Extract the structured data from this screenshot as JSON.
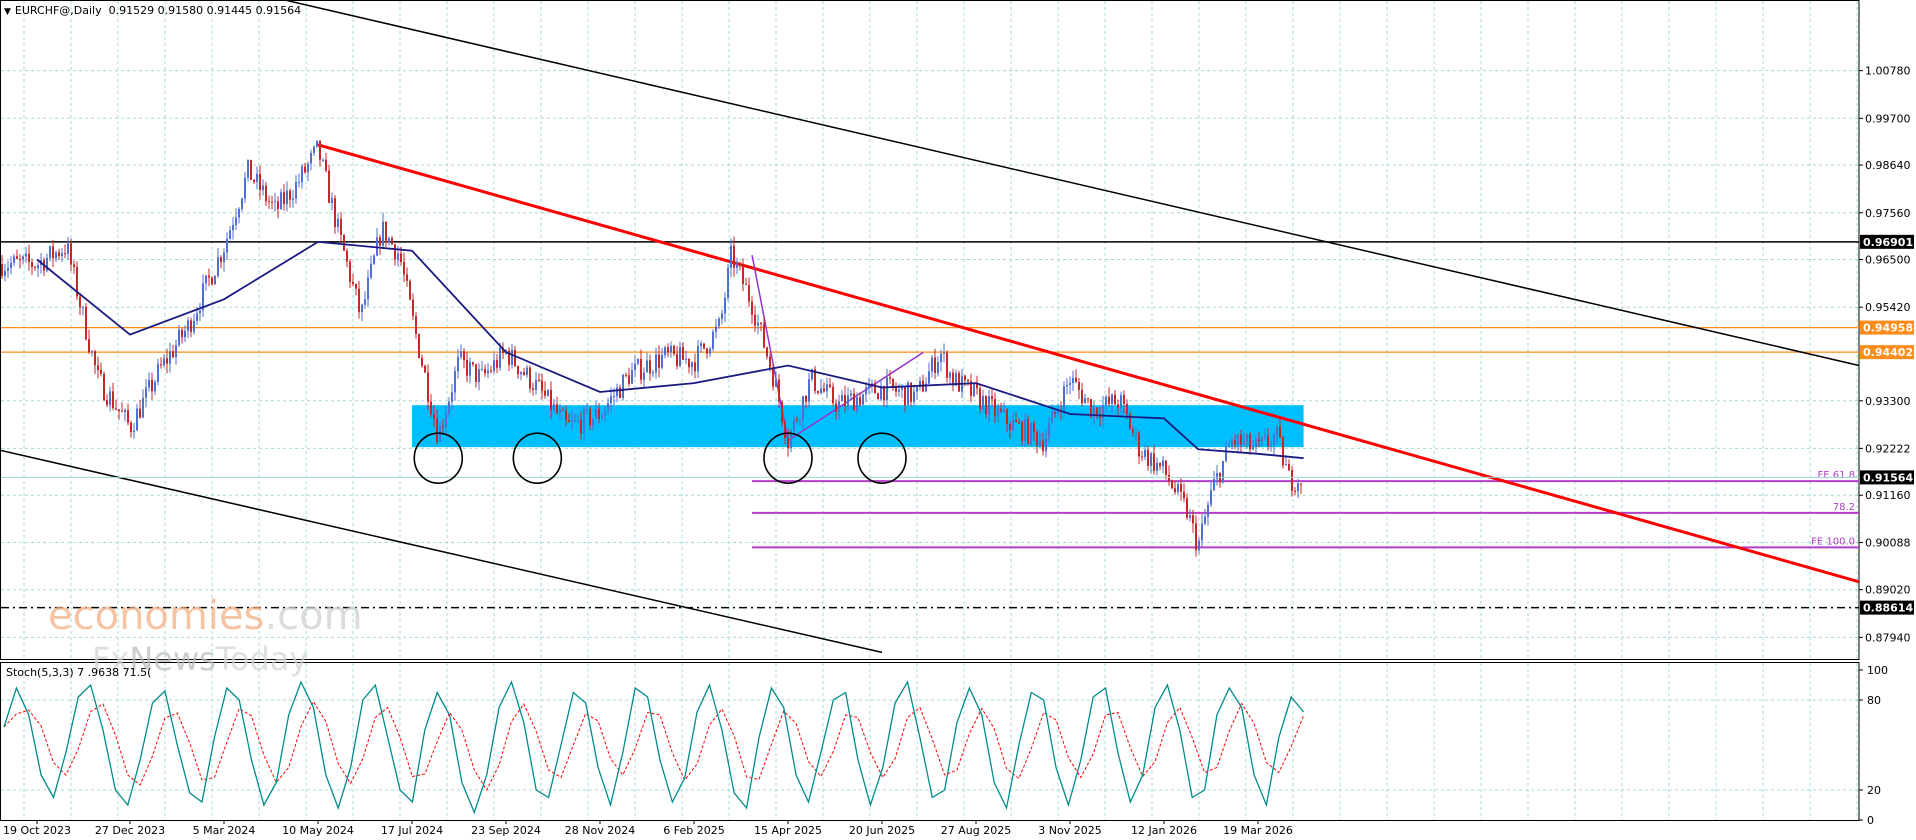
{
  "header": {
    "symbol": "EURCHF@,Daily",
    "ohlc": "0.91529 0.91580 0.91445 0.91564"
  },
  "indicator_label": "Stoch(5,3,3) 7 .9638 71.5(",
  "watermark": {
    "brand_a": "economies",
    "brand_b": ".com",
    "brand_c": "Fx",
    "brand_d": "News",
    "brand_e": "Today"
  },
  "chart_data": [
    {
      "type": "candlestick",
      "symbol": "EURCHF@",
      "timeframe": "Daily",
      "open": 0.91529,
      "high": 0.9158,
      "low": 0.91445,
      "close": 0.91564,
      "y_ticks": [
        "1.00780",
        "0.99700",
        "0.98640",
        "0.97560",
        "0.96500",
        "0.95420",
        "0.93300",
        "0.92222",
        "0.91160",
        "0.90088",
        "0.89020",
        "0.87940"
      ],
      "x_ticks": [
        "19 Oct 2023",
        "27 Dec 2023",
        "5 Mar 2024",
        "10 May 2024",
        "17 Jul 2024",
        "23 Sep 2024",
        "28 Nov 2024",
        "6 Feb 2025",
        "15 Apr 2025",
        "20 Jun 2025",
        "27 Aug 2025",
        "3 Nov 2025",
        "12 Jan 2026",
        "19 Mar 2026"
      ],
      "ylim": [
        0.8745,
        1.0238
      ],
      "grid": true,
      "price_path": [
        [
          "19 Oct 2023",
          0.964
        ],
        [
          "10 Nov 2023",
          0.968
        ],
        [
          "3 Dec 2023",
          0.938
        ],
        [
          "27 Dec 2023",
          0.927
        ],
        [
          "18 Jan 2024",
          0.94
        ],
        [
          "8 Feb 2024",
          0.95
        ],
        [
          "5 Mar 2024",
          0.968
        ],
        [
          "22 Mar 2024",
          0.985
        ],
        [
          "10 Apr 2024",
          0.976
        ],
        [
          "25 Apr 2024",
          0.982
        ],
        [
          "10 May 2024",
          0.99
        ],
        [
          "25 May 2024",
          0.971
        ],
        [
          "10 Jun 2024",
          0.952
        ],
        [
          "25 Jun 2024",
          0.972
        ],
        [
          "8 Jul 2024",
          0.966
        ],
        [
          "17 Jul 2024",
          0.952
        ],
        [
          "5 Aug 2024",
          0.925
        ],
        [
          "20 Aug 2024",
          0.942
        ],
        [
          "5 Sep 2024",
          0.938
        ],
        [
          "23 Sep 2024",
          0.944
        ],
        [
          "15 Oct 2024",
          0.936
        ],
        [
          "5 Nov 2024",
          0.927
        ],
        [
          "28 Nov 2024",
          0.93
        ],
        [
          "20 Dec 2024",
          0.939
        ],
        [
          "15 Jan 2025",
          0.943
        ],
        [
          "6 Feb 2025",
          0.942
        ],
        [
          "25 Feb 2025",
          0.95
        ],
        [
          "5 Mar 2025",
          0.966
        ],
        [
          "20 Mar 2025",
          0.955
        ],
        [
          "5 Apr 2025",
          0.938
        ],
        [
          "15 Apr 2025",
          0.924
        ],
        [
          "1 May 2025",
          0.938
        ],
        [
          "20 May 2025",
          0.932
        ],
        [
          "20 Jun 2025",
          0.936
        ],
        [
          "15 Jul 2025",
          0.934
        ],
        [
          "1 Aug 2025",
          0.944
        ],
        [
          "10 Aug 2025",
          0.938
        ],
        [
          "27 Aug 2025",
          0.934
        ],
        [
          "20 Sep 2025",
          0.928
        ],
        [
          "15 Oct 2025",
          0.924
        ],
        [
          "3 Nov 2025",
          0.938
        ],
        [
          "20 Nov 2025",
          0.931
        ],
        [
          "10 Dec 2025",
          0.933
        ],
        [
          "25 Dec 2025",
          0.922
        ],
        [
          "12 Jan 2026",
          0.917
        ],
        [
          "28 Jan 2026",
          0.908
        ],
        [
          "5 Feb 2026",
          0.9
        ],
        [
          "15 Feb 2026",
          0.913
        ],
        [
          "1 Mar 2026",
          0.924
        ],
        [
          "19 Mar 2026",
          0.922
        ],
        [
          "1 Apr 2026",
          0.925
        ],
        [
          "10 Apr 2026",
          0.915
        ],
        [
          "20 Apr 2026",
          0.9156
        ]
      ],
      "moving_average_path": [
        [
          "19 Oct 2023",
          0.965
        ],
        [
          "27 Dec 2023",
          0.948
        ],
        [
          "5 Mar 2024",
          0.956
        ],
        [
          "10 May 2024",
          0.969
        ],
        [
          "17 Jul 2024",
          0.967
        ],
        [
          "23 Sep 2024",
          0.944
        ],
        [
          "28 Nov 2024",
          0.935
        ],
        [
          "6 Feb 2025",
          0.937
        ],
        [
          "15 Apr 2025",
          0.941
        ],
        [
          "20 Jun 2025",
          0.936
        ],
        [
          "27 Aug 2025",
          0.937
        ],
        [
          "3 Nov 2025",
          0.93
        ],
        [
          "12 Jan 2026",
          0.929
        ],
        [
          "5 Feb 2026",
          0.922
        ],
        [
          "19 Mar 2026",
          0.921
        ],
        [
          "20 Apr 2026",
          0.92
        ]
      ],
      "horizontal_levels": [
        {
          "value": 0.96901,
          "label": "0.96901",
          "color": "#000000",
          "style": "solid"
        },
        {
          "value": 0.94958,
          "label": "0.94958",
          "color": "#ff8c1a",
          "style": "solid"
        },
        {
          "value": 0.94402,
          "label": "0.94402",
          "color": "#ff8c1a",
          "style": "solid"
        },
        {
          "value": 0.88614,
          "label": "0.88614",
          "color": "#000000",
          "style": "dash-dot"
        }
      ],
      "current_price": {
        "value": 0.91564,
        "label": "0.91564"
      },
      "fibonacci_levels": [
        {
          "label": "FE 61.8",
          "value": 0.9148
        },
        {
          "label": "78.2",
          "value": 0.9076
        },
        {
          "label": "FE 100.0",
          "value": 0.8998
        }
      ],
      "support_zone": {
        "from": "17 Jul 2024",
        "to": "20 Apr 2026",
        "low": 0.9225,
        "high": 0.932,
        "color": "#00bfff"
      },
      "trend_lines": [
        {
          "name": "upper-channel",
          "color": "#000000",
          "from": [
            "5 Mar 2024",
            1.027
          ],
          "to": [
            "end",
            0.941
          ]
        },
        {
          "name": "lower-channel",
          "color": "#000000",
          "from": [
            "start",
            0.9218
          ],
          "to": [
            "20 Jun 2025",
            0.876
          ]
        },
        {
          "name": "red-downtrend",
          "color": "#ff0000",
          "from": [
            "10 May 2024",
            0.991
          ],
          "to": [
            "end",
            0.892
          ]
        },
        {
          "name": "purple-drop",
          "color": "#9932cc",
          "from": [
            "20 Mar 2025",
            0.966
          ],
          "to": [
            "15 Apr 2025",
            0.924
          ]
        },
        {
          "name": "purple-rise",
          "color": "#9932cc",
          "from": [
            "15 Apr 2025",
            0.924
          ],
          "to": [
            "20 Jul 2025",
            0.944
          ]
        }
      ],
      "circled_lows": [
        "5 Aug 2024",
        "15 Oct 2024",
        "15 Apr 2025",
        "20 Jun 2025"
      ]
    },
    {
      "type": "line",
      "name": "Stoch(5,3,3)",
      "y_ticks": [
        "100",
        "80",
        "20",
        "0"
      ],
      "ylim": [
        0,
        100
      ],
      "levels": [
        80,
        20
      ],
      "series_colors": {
        "main": "#008b8b",
        "signal": "#ff0000"
      },
      "series": [
        {
          "values": [
            62,
            88,
            70,
            30,
            15,
            45,
            82,
            90,
            60,
            20,
            10,
            40,
            78,
            86,
            50,
            18,
            12,
            55,
            88,
            80,
            40,
            10,
            25,
            70,
            92,
            75,
            30,
            8,
            35,
            80,
            90,
            55,
            20,
            12,
            60,
            85,
            70,
            25,
            5,
            30,
            75,
            92,
            65,
            20,
            15,
            50,
            85,
            78,
            35,
            10,
            45,
            88,
            82,
            40,
            12,
            28,
            72,
            90,
            60,
            18,
            8,
            55,
            88,
            75,
            30,
            12,
            45,
            80,
            85,
            40,
            10,
            35,
            78,
            92,
            55,
            15,
            20,
            65,
            88,
            70,
            25,
            8,
            50,
            85,
            80,
            35,
            10,
            40,
            82,
            88,
            45,
            12,
            30,
            75,
            90,
            60,
            15,
            20,
            70,
            88,
            75,
            30,
            10,
            55,
            82,
            72
          ]
        }
      ]
    }
  ]
}
